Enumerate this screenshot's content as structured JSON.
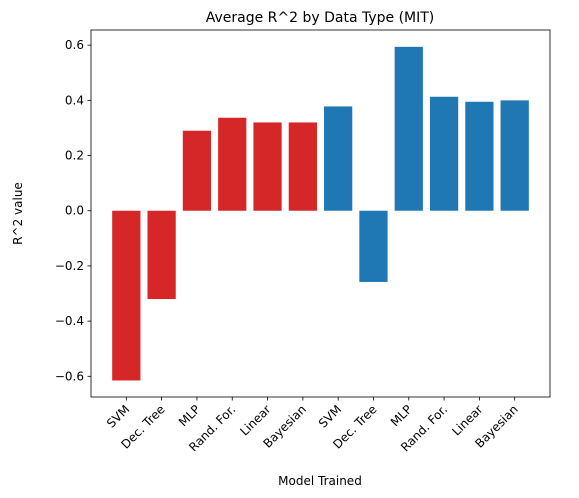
{
  "chart_data": {
    "type": "bar",
    "title": "Average R^2 by Data Type (MIT)",
    "xlabel": "Model Trained",
    "ylabel": "R^2 value",
    "categories": [
      "SVM",
      "Dec. Tree",
      "MLP",
      "Rand. For.",
      "Linear",
      "Bayesian",
      "SVM",
      "Dec. Tree",
      "MLP",
      "Rand. For.",
      "Linear",
      "Bayesian"
    ],
    "values": [
      -0.615,
      -0.32,
      0.29,
      0.337,
      0.32,
      0.32,
      0.378,
      -0.258,
      0.594,
      0.413,
      0.395,
      0.4
    ],
    "bar_colors": [
      "#d62728",
      "#d62728",
      "#d62728",
      "#d62728",
      "#d62728",
      "#d62728",
      "#1f77b4",
      "#1f77b4",
      "#1f77b4",
      "#1f77b4",
      "#1f77b4",
      "#1f77b4"
    ],
    "ylim": [
      -0.675,
      0.655
    ],
    "yticks": [
      -0.6,
      -0.4,
      -0.2,
      0.0,
      0.2,
      0.4,
      0.6
    ],
    "ytick_labels": [
      "−0.6",
      "−0.4",
      "−0.2",
      "0.0",
      "0.2",
      "0.4",
      "0.6"
    ],
    "grid": false,
    "legend": "none"
  }
}
